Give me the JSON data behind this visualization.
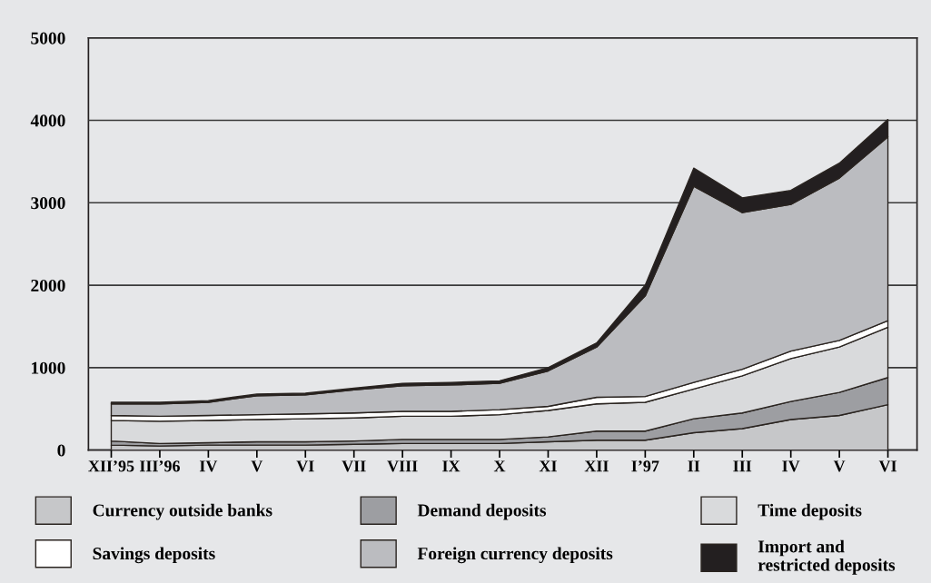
{
  "chart_data": {
    "type": "area",
    "stacked": true,
    "categories": [
      "XII’95",
      "III’96",
      "IV",
      "V",
      "VI",
      "VII",
      "VIII",
      "IX",
      "X",
      "XI",
      "XII",
      "I’97",
      "II",
      "III",
      "IV",
      "V",
      "VI"
    ],
    "series": [
      {
        "name": "Currency outside banks",
        "color": "#c6c7c9",
        "values": [
          60,
          50,
          60,
          60,
          60,
          70,
          80,
          80,
          80,
          100,
          120,
          120,
          210,
          260,
          370,
          420,
          550
        ]
      },
      {
        "name": "Demand deposits",
        "color": "#9d9ea2",
        "values": [
          50,
          30,
          30,
          40,
          40,
          40,
          50,
          50,
          50,
          60,
          110,
          110,
          170,
          190,
          220,
          280,
          330
        ]
      },
      {
        "name": "Time deposits",
        "color": "#d9dadc",
        "values": [
          250,
          270,
          270,
          270,
          280,
          280,
          280,
          280,
          300,
          320,
          330,
          350,
          360,
          450,
          520,
          550,
          610
        ]
      },
      {
        "name": "Savings deposits",
        "color": "#ffffff",
        "values": [
          60,
          60,
          60,
          60,
          60,
          60,
          60,
          60,
          60,
          50,
          80,
          70,
          80,
          80,
          90,
          80,
          80
        ]
      },
      {
        "name": "Foreign currency deposits",
        "color": "#bbbcc0",
        "values": [
          140,
          150,
          160,
          230,
          230,
          280,
          310,
          320,
          320,
          430,
          610,
          1220,
          2380,
          1900,
          1780,
          1970,
          2230
        ]
      },
      {
        "name": "Import and\nrestricted deposits",
        "color": "#231f20",
        "values": [
          20,
          20,
          20,
          20,
          20,
          20,
          30,
          30,
          30,
          40,
          50,
          130,
          220,
          180,
          170,
          180,
          210
        ]
      }
    ],
    "ylim": [
      0,
      5000
    ],
    "yticks": [
      0,
      1000,
      2000,
      3000,
      4000,
      5000
    ],
    "grid": "y",
    "legend": "bottom"
  }
}
